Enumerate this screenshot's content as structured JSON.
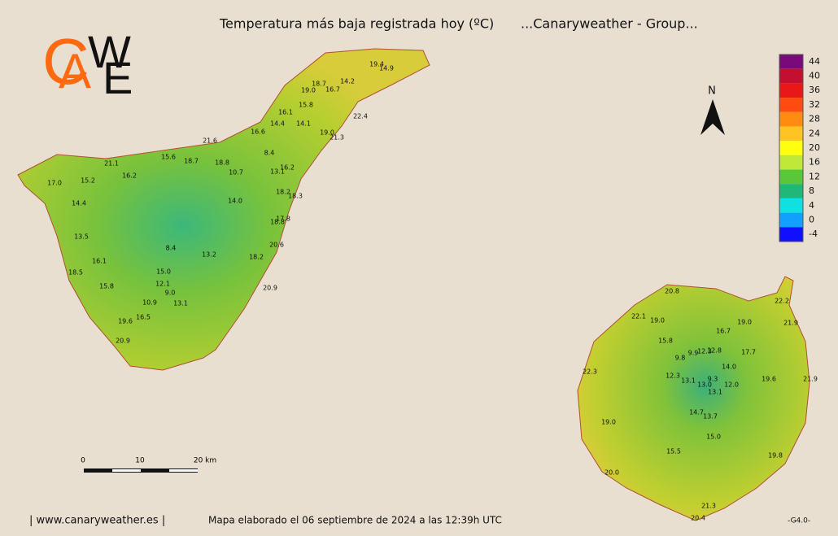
{
  "title": "Temperatura más baja registrada hoy (ºC)",
  "subtitle": "...Canaryweather - Group...",
  "logo": [
    "C",
    "A",
    "W",
    "E"
  ],
  "north": "N",
  "legend": {
    "ticks": [
      44,
      40,
      36,
      32,
      28,
      24,
      20,
      16,
      12,
      8,
      4,
      0,
      -4
    ],
    "colors": [
      "#7a0a7a",
      "#c41030",
      "#e81818",
      "#ff4a10",
      "#ff8c10",
      "#ffc424",
      "#ffff10",
      "#c0e838",
      "#58c838",
      "#20b878",
      "#10e0e0",
      "#10a0ff",
      "#1010ff"
    ]
  },
  "scale": [
    "0",
    "10",
    "20 km"
  ],
  "tenerife": [
    "19.4",
    "14.9",
    "18.7",
    "14.2",
    "19.0",
    "16.7",
    "15.8",
    "22.4",
    "16.1",
    "14.4",
    "14.1",
    "19.0",
    "21.3",
    "16.6",
    "21.6",
    "8.4",
    "15.6",
    "18.7",
    "18.8",
    "21.1",
    "16.2",
    "13.1",
    "10.7",
    "16.2",
    "15.2",
    "17.0",
    "18.2",
    "18.3",
    "14.0",
    "14.4",
    "17.8",
    "18.8",
    "13.5",
    "20.6",
    "8.4",
    "13.2",
    "18.2",
    "16.1",
    "18.5",
    "15.0",
    "12.1",
    "15.8",
    "20.9",
    "9.0",
    "10.9",
    "13.1",
    "16.5",
    "19.6",
    "20.9"
  ],
  "gran_canaria": [
    "20.8",
    "22.2",
    "22.1",
    "19.0",
    "19.0",
    "21.9",
    "16.7",
    "15.8",
    "12.8",
    "9.9",
    "12.3",
    "17.7",
    "9.8",
    "14.0",
    "12.3",
    "9.3",
    "21.9",
    "13.1",
    "13.0",
    "19.6",
    "12.0",
    "22.3",
    "13.1",
    "14.7",
    "13.7",
    "19.0",
    "15.0",
    "15.5",
    "19.8",
    "20.0",
    "21.3",
    "20.4"
  ],
  "footer": {
    "site": "| www.canaryweather.es |",
    "note": "Mapa elaborado el 06 septiembre de 2024 a las 12:39h UTC",
    "version": "-G4.0-"
  }
}
